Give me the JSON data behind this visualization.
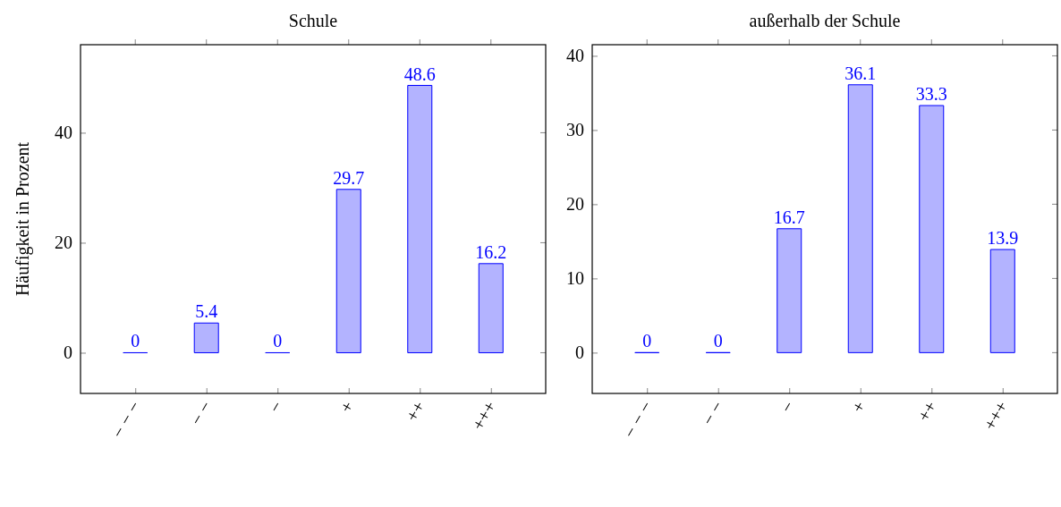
{
  "chart_data": [
    {
      "type": "bar",
      "title": "Schule",
      "ylabel": "Häufigkeit in Prozent",
      "categories": [
        "− − −",
        "− −",
        "−",
        "+",
        "++",
        "+++"
      ],
      "series": [
        {
          "color": "#0000ff",
          "values": [
            0,
            5.4,
            0,
            29.7,
            48.6,
            16.2
          ]
        }
      ],
      "ylim": [
        -7.4,
        56
      ],
      "yticks": [
        0,
        20,
        40
      ],
      "data_labels": true
    },
    {
      "type": "bar",
      "title": "außerhalb der Schule",
      "categories": [
        "− − −",
        "− −",
        "−",
        "+",
        "++",
        "+++"
      ],
      "series": [
        {
          "color": "#0000ff",
          "values": [
            0,
            0,
            16.7,
            36.1,
            33.3,
            13.9
          ]
        }
      ],
      "ylim": [
        -5.5,
        41.5
      ],
      "yticks": [
        0,
        10,
        20,
        30,
        40
      ],
      "data_labels": true
    }
  ]
}
